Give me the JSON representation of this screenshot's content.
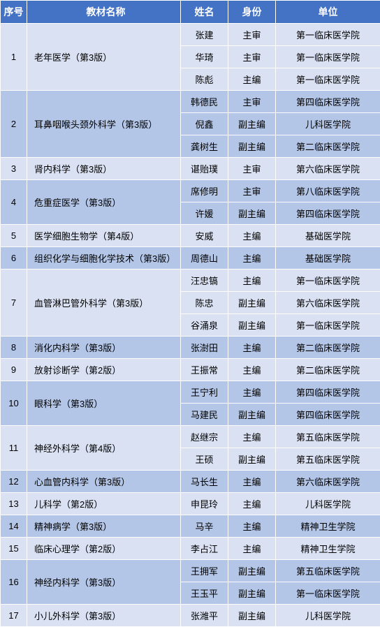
{
  "headers": {
    "seq": "序号",
    "book": "教材名称",
    "name": "姓名",
    "role": "身份",
    "unit": "单位"
  },
  "colors": {
    "header_bg": "#4472c4",
    "header_fg": "#ffffff",
    "row_light": "#d9e1f2",
    "row_dark": "#b4c6e7",
    "border": "#ffffff"
  },
  "groups": [
    {
      "seq": "1",
      "book": "老年医学（第3版）",
      "shade": "light",
      "rows": [
        {
          "name": "张建",
          "role": "主审",
          "unit": "第一临床医学院"
        },
        {
          "name": "华琦",
          "role": "主审",
          "unit": "第一临床医学院"
        },
        {
          "name": "陈彪",
          "role": "主编",
          "unit": "第一临床医学院"
        }
      ]
    },
    {
      "seq": "2",
      "book": "耳鼻咽喉头颈外科学（第3版）",
      "shade": "dark",
      "rows": [
        {
          "name": "韩德民",
          "role": "主审",
          "unit": "第四临床医学院"
        },
        {
          "name": "倪鑫",
          "role": "副主编",
          "unit": "儿科医学院"
        },
        {
          "name": "龚树生",
          "role": "副主编",
          "unit": "第二临床医学院"
        }
      ]
    },
    {
      "seq": "3",
      "book": "肾内科学（第3版）",
      "shade": "light",
      "rows": [
        {
          "name": "谌贻璞",
          "role": "主审",
          "unit": "第六临床医学院"
        }
      ]
    },
    {
      "seq": "4",
      "book": "危重症医学（第3版）",
      "shade": "dark",
      "rows": [
        {
          "name": "席修明",
          "role": "主审",
          "unit": "第八临床医学院"
        },
        {
          "name": "许媛",
          "role": "副主编",
          "unit": "第四临床医学院"
        }
      ]
    },
    {
      "seq": "5",
      "book": "医学细胞生物学（第4版）",
      "shade": "light",
      "rows": [
        {
          "name": "安威",
          "role": "主编",
          "unit": "基础医学院"
        }
      ]
    },
    {
      "seq": "6",
      "book": "组织化学与细胞化学技术（第3版）",
      "shade": "dark",
      "rows": [
        {
          "name": "周德山",
          "role": "主编",
          "unit": "基础医学院"
        }
      ]
    },
    {
      "seq": "7",
      "book": "血管淋巴管外科学（第3版）",
      "shade": "light",
      "rows": [
        {
          "name": "汪忠镐",
          "role": "主编",
          "unit": "第一临床医学院"
        },
        {
          "name": "陈忠",
          "role": "副主编",
          "unit": "第六临床医学院"
        },
        {
          "name": "谷涌泉",
          "role": "副主编",
          "unit": "第一临床医学院"
        }
      ]
    },
    {
      "seq": "8",
      "book": "消化内科学（第3版）",
      "shade": "dark",
      "rows": [
        {
          "name": "张澍田",
          "role": "主编",
          "unit": "第二临床医学院"
        }
      ]
    },
    {
      "seq": "9",
      "book": "放射诊断学（第2版）",
      "shade": "light",
      "rows": [
        {
          "name": "王振常",
          "role": "主编",
          "unit": "第二临床医学院"
        }
      ]
    },
    {
      "seq": "10",
      "book": "眼科学（第3版）",
      "shade": "dark",
      "rows": [
        {
          "name": "王宁利",
          "role": "主编",
          "unit": "第四临床医学院"
        },
        {
          "name": "马建民",
          "role": "副主编",
          "unit": "第四临床医学院"
        }
      ]
    },
    {
      "seq": "11",
      "book": "神经外科学（第4版）",
      "shade": "light",
      "rows": [
        {
          "name": "赵继宗",
          "role": "主编",
          "unit": "第五临床医学院"
        },
        {
          "name": "王硕",
          "role": "副主编",
          "unit": "第五临床医学院"
        }
      ]
    },
    {
      "seq": "12",
      "book": "心血管内科学（第3版）",
      "shade": "dark",
      "rows": [
        {
          "name": "马长生",
          "role": "主编",
          "unit": "第六临床医学院"
        }
      ]
    },
    {
      "seq": "13",
      "book": "儿科学（第2版）",
      "shade": "light",
      "rows": [
        {
          "name": "申昆玲",
          "role": "主编",
          "unit": "儿科医学院"
        }
      ]
    },
    {
      "seq": "14",
      "book": "精神病学（第3版）",
      "shade": "dark",
      "rows": [
        {
          "name": "马辛",
          "role": "主编",
          "unit": "精神卫生学院"
        }
      ]
    },
    {
      "seq": "15",
      "book": "临床心理学（第2版）",
      "shade": "light",
      "rows": [
        {
          "name": "李占江",
          "role": "主编",
          "unit": "精神卫生学院"
        }
      ]
    },
    {
      "seq": "16",
      "book": "神经内科学（第3版）",
      "shade": "dark",
      "rows": [
        {
          "name": "王拥军",
          "role": "副主编",
          "unit": "第五临床医学院"
        },
        {
          "name": "王玉平",
          "role": "副主编",
          "unit": "第一临床医学院"
        }
      ]
    },
    {
      "seq": "17",
      "book": "小儿外科学（第3版）",
      "shade": "light",
      "rows": [
        {
          "name": "张潍平",
          "role": "副主编",
          "unit": "儿科医学院"
        }
      ]
    }
  ]
}
